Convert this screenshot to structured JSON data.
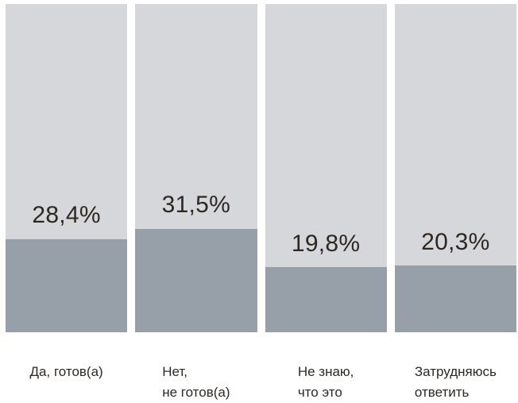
{
  "chart_data": {
    "type": "bar",
    "title": "",
    "xlabel": "",
    "ylabel": "",
    "ylim": [
      0,
      100
    ],
    "unit": "%",
    "grid": false,
    "legend": "none",
    "orientation": "vertical",
    "track_represents": "100%",
    "categories": [
      "Да, готов(а)",
      "Нет,\nне готов(а)",
      "Не знаю,\nчто это",
      "Затрудняюсь\nответить"
    ],
    "values": [
      28.4,
      31.5,
      19.8,
      20.3
    ],
    "value_labels": [
      "28,4%",
      "31,5%",
      "19,8%",
      "20,3%"
    ],
    "colors": {
      "track": "#d6d7da",
      "fill": "#97a0a9",
      "label_text": "#2e2823",
      "background": "#ffffff"
    }
  }
}
